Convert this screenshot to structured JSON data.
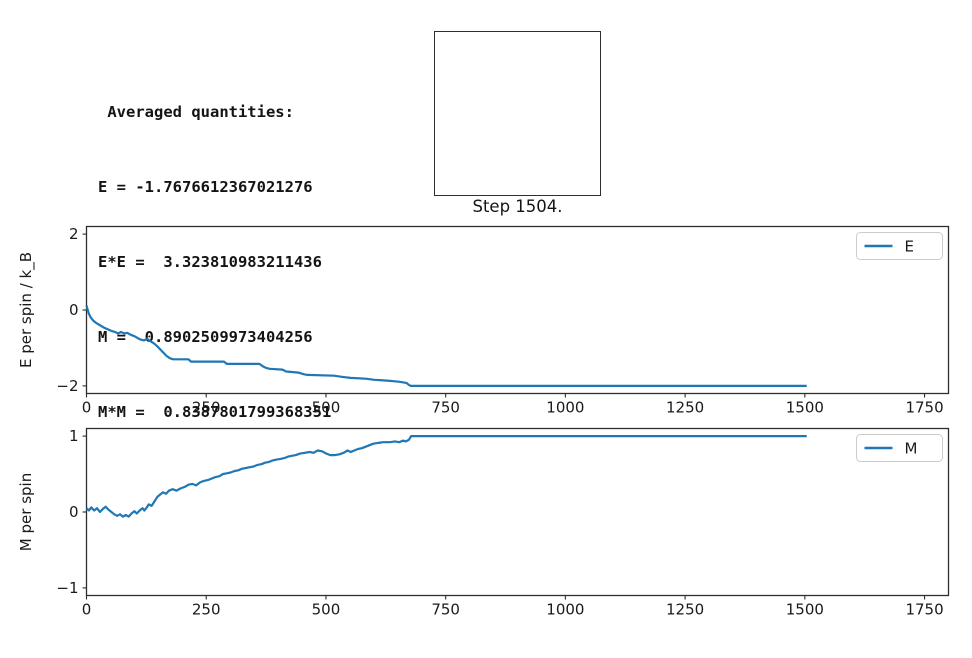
{
  "info": {
    "title": " Averaged quantities:",
    "lines": [
      "E = -1.7676612367021276",
      "E*E =  3.323810983211436",
      "M =  0.8902509973404256",
      "M*M =  0.8387801799368351"
    ],
    "step_caption": "Step 1504."
  },
  "colors": {
    "series_blue": "#1f77b4",
    "spine": "#2e2e2e",
    "text": "#1a1a1a",
    "legend_border": "#cccccc",
    "background": "#ffffff"
  },
  "chart_data": [
    {
      "type": "line",
      "title": "",
      "xlabel": "",
      "ylabel": "E per spin / k_B",
      "grid": false,
      "legend_position": "upper right",
      "xlim": [
        0,
        1800
      ],
      "ylim": [
        -2.2,
        2.2
      ],
      "xticks": [
        0,
        250,
        500,
        750,
        1000,
        1250,
        1500,
        1750
      ],
      "yticks": [
        -2,
        0,
        2
      ],
      "series": [
        {
          "name": "E",
          "color": "#1f77b4",
          "points": [
            [
              0,
              0.12
            ],
            [
              2,
              0.02
            ],
            [
              5,
              -0.1
            ],
            [
              9,
              -0.2
            ],
            [
              14,
              -0.28
            ],
            [
              20,
              -0.34
            ],
            [
              28,
              -0.4
            ],
            [
              36,
              -0.46
            ],
            [
              45,
              -0.51
            ],
            [
              52,
              -0.55
            ],
            [
              60,
              -0.58
            ],
            [
              66,
              -0.62
            ],
            [
              72,
              -0.58
            ],
            [
              79,
              -0.62
            ],
            [
              85,
              -0.6
            ],
            [
              92,
              -0.65
            ],
            [
              100,
              -0.69
            ],
            [
              107,
              -0.74
            ],
            [
              113,
              -0.78
            ],
            [
              120,
              -0.8
            ],
            [
              127,
              -0.76
            ],
            [
              133,
              -0.82
            ],
            [
              141,
              -0.88
            ],
            [
              148,
              -0.96
            ],
            [
              155,
              -1.05
            ],
            [
              161,
              -1.13
            ],
            [
              167,
              -1.21
            ],
            [
              174,
              -1.27
            ],
            [
              181,
              -1.3
            ],
            [
              213,
              -1.3
            ],
            [
              218,
              -1.36
            ],
            [
              287,
              -1.36
            ],
            [
              293,
              -1.42
            ],
            [
              361,
              -1.42
            ],
            [
              368,
              -1.48
            ],
            [
              376,
              -1.53
            ],
            [
              383,
              -1.55
            ],
            [
              409,
              -1.57
            ],
            [
              417,
              -1.62
            ],
            [
              443,
              -1.65
            ],
            [
              452,
              -1.69
            ],
            [
              461,
              -1.71
            ],
            [
              517,
              -1.73
            ],
            [
              533,
              -1.76
            ],
            [
              551,
              -1.79
            ],
            [
              583,
              -1.81
            ],
            [
              601,
              -1.84
            ],
            [
              628,
              -1.86
            ],
            [
              652,
              -1.89
            ],
            [
              668,
              -1.92
            ],
            [
              673,
              -1.97
            ],
            [
              677,
              -2.0
            ],
            [
              1504,
              -2.0
            ]
          ]
        }
      ]
    },
    {
      "type": "line",
      "title": "",
      "xlabel": "",
      "ylabel": "M per spin",
      "grid": false,
      "legend_position": "upper right",
      "xlim": [
        0,
        1800
      ],
      "ylim": [
        -1.1,
        1.1
      ],
      "xticks": [
        0,
        250,
        500,
        750,
        1000,
        1250,
        1500,
        1750
      ],
      "yticks": [
        -1,
        0,
        1
      ],
      "series": [
        {
          "name": "M",
          "color": "#1f77b4",
          "points": [
            [
              0,
              0.05
            ],
            [
              5,
              0.02
            ],
            [
              10,
              0.06
            ],
            [
              16,
              0.02
            ],
            [
              22,
              0.05
            ],
            [
              28,
              0.0
            ],
            [
              34,
              0.04
            ],
            [
              40,
              0.07
            ],
            [
              46,
              0.03
            ],
            [
              52,
              0.0
            ],
            [
              58,
              -0.03
            ],
            [
              64,
              -0.05
            ],
            [
              70,
              -0.03
            ],
            [
              76,
              -0.06
            ],
            [
              82,
              -0.04
            ],
            [
              88,
              -0.06
            ],
            [
              94,
              -0.02
            ],
            [
              100,
              0.01
            ],
            [
              105,
              -0.02
            ],
            [
              111,
              0.02
            ],
            [
              117,
              0.05
            ],
            [
              121,
              0.02
            ],
            [
              126,
              0.06
            ],
            [
              130,
              0.1
            ],
            [
              136,
              0.08
            ],
            [
              142,
              0.14
            ],
            [
              148,
              0.2
            ],
            [
              154,
              0.23
            ],
            [
              160,
              0.26
            ],
            [
              166,
              0.24
            ],
            [
              172,
              0.28
            ],
            [
              180,
              0.3
            ],
            [
              188,
              0.28
            ],
            [
              196,
              0.31
            ],
            [
              205,
              0.33
            ],
            [
              213,
              0.36
            ],
            [
              221,
              0.37
            ],
            [
              229,
              0.35
            ],
            [
              237,
              0.39
            ],
            [
              245,
              0.41
            ],
            [
              253,
              0.42
            ],
            [
              261,
              0.44
            ],
            [
              269,
              0.46
            ],
            [
              277,
              0.47
            ],
            [
              285,
              0.5
            ],
            [
              293,
              0.51
            ],
            [
              301,
              0.52
            ],
            [
              309,
              0.54
            ],
            [
              317,
              0.55
            ],
            [
              325,
              0.57
            ],
            [
              333,
              0.58
            ],
            [
              341,
              0.59
            ],
            [
              349,
              0.6
            ],
            [
              357,
              0.62
            ],
            [
              365,
              0.63
            ],
            [
              373,
              0.65
            ],
            [
              381,
              0.66
            ],
            [
              389,
              0.68
            ],
            [
              397,
              0.69
            ],
            [
              405,
              0.7
            ],
            [
              413,
              0.71
            ],
            [
              421,
              0.73
            ],
            [
              429,
              0.74
            ],
            [
              437,
              0.75
            ],
            [
              446,
              0.77
            ],
            [
              456,
              0.78
            ],
            [
              466,
              0.79
            ],
            [
              474,
              0.78
            ],
            [
              483,
              0.81
            ],
            [
              492,
              0.8
            ],
            [
              501,
              0.77
            ],
            [
              509,
              0.75
            ],
            [
              519,
              0.75
            ],
            [
              528,
              0.76
            ],
            [
              537,
              0.78
            ],
            [
              545,
              0.81
            ],
            [
              552,
              0.79
            ],
            [
              559,
              0.81
            ],
            [
              567,
              0.83
            ],
            [
              575,
              0.84
            ],
            [
              583,
              0.86
            ],
            [
              591,
              0.88
            ],
            [
              599,
              0.9
            ],
            [
              609,
              0.91
            ],
            [
              619,
              0.92
            ],
            [
              634,
              0.92
            ],
            [
              644,
              0.93
            ],
            [
              653,
              0.92
            ],
            [
              661,
              0.94
            ],
            [
              667,
              0.93
            ],
            [
              673,
              0.95
            ],
            [
              678,
              1.0
            ],
            [
              1504,
              1.0
            ]
          ]
        }
      ]
    }
  ]
}
